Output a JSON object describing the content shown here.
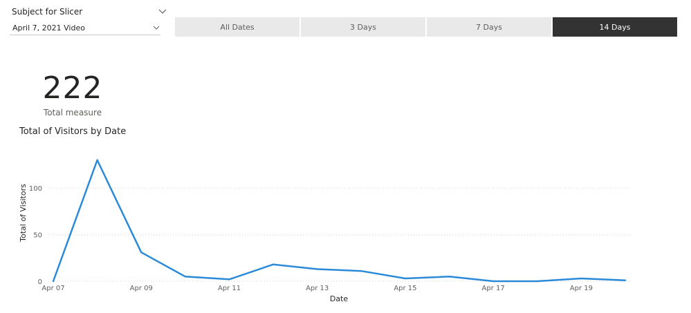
{
  "slicer": {
    "title": "Subject for Slicer",
    "selected_value": "April 7, 2021 Video"
  },
  "tabs": [
    {
      "label": "All Dates",
      "active": false
    },
    {
      "label": "3 Days",
      "active": false
    },
    {
      "label": "7 Days",
      "active": false
    },
    {
      "label": "14 Days",
      "active": true
    }
  ],
  "kpi": {
    "value": "222",
    "label": "Total measure"
  },
  "colors": {
    "line": "#2b8ad8",
    "tab_active_bg": "#333333",
    "tab_bg": "#e9e9e9",
    "grid": "#d0d0d0"
  },
  "chart_data": {
    "type": "line",
    "title": "Total of Visitors by Date",
    "xlabel": "Date",
    "ylabel": "Total of Visitors",
    "ylim": [
      0,
      135
    ],
    "yticks": [
      0,
      50,
      100
    ],
    "x_tick_labels": [
      "Apr 07",
      "Apr 09",
      "Apr 11",
      "Apr 13",
      "Apr 15",
      "Apr 17",
      "Apr 19"
    ],
    "x": [
      "Apr 07",
      "Apr 08",
      "Apr 09",
      "Apr 10",
      "Apr 11",
      "Apr 12",
      "Apr 13",
      "Apr 14",
      "Apr 15",
      "Apr 16",
      "Apr 17",
      "Apr 18",
      "Apr 19",
      "Apr 20"
    ],
    "series": [
      {
        "values": [
          0,
          130,
          31,
          5,
          2,
          18,
          13,
          11,
          3,
          5,
          0,
          0,
          3,
          1
        ]
      }
    ],
    "grid": true
  }
}
